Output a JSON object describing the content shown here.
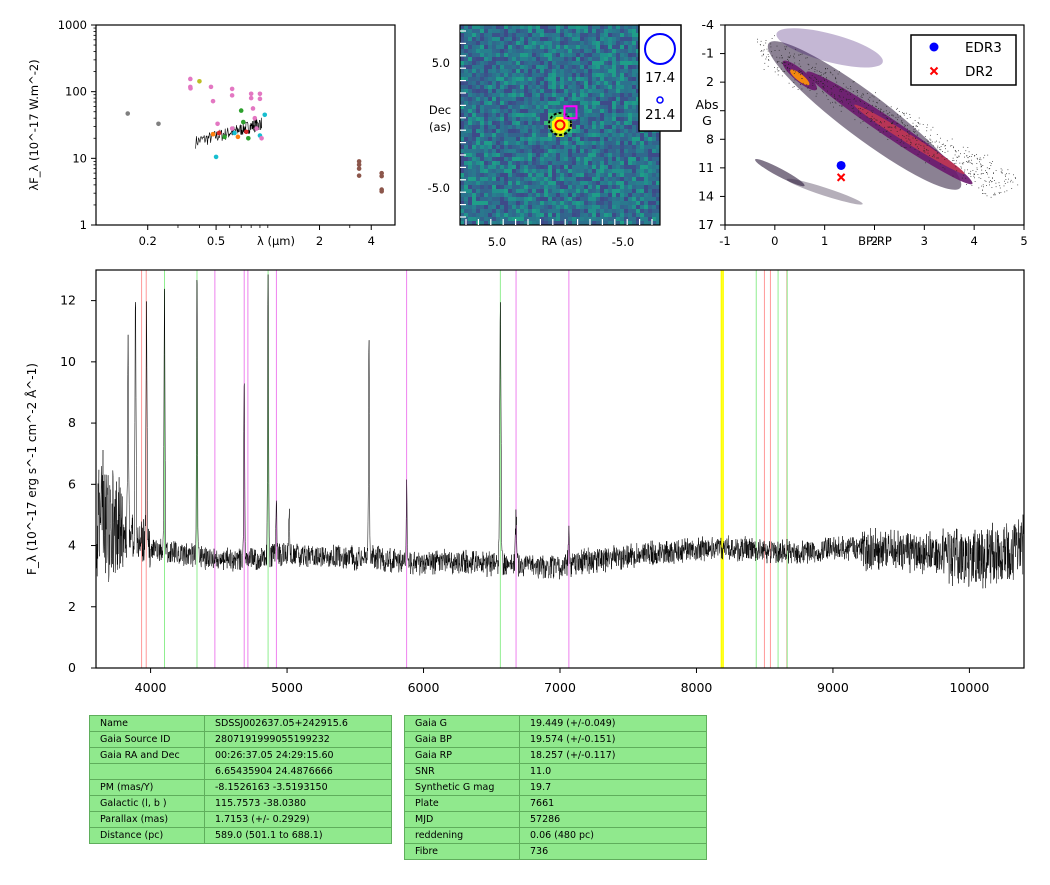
{
  "chart_data": [
    {
      "type": "scatter",
      "panel": "sed",
      "ylabel": "λF_λ (10^-17 W.m^-2)",
      "xlabel": "λ (μm)",
      "xscale": "log",
      "yscale": "log",
      "xlim": [
        0.1,
        5.5
      ],
      "ylim": [
        1,
        1000
      ],
      "xticks": [
        "0.2",
        "0.5",
        "2",
        "4"
      ],
      "yticks": [
        "1",
        "10",
        "100",
        "1000"
      ],
      "points": [
        {
          "x": 0.153,
          "y": 47,
          "color": "#7f7f7f"
        },
        {
          "x": 0.231,
          "y": 33,
          "color": "#7f7f7f"
        },
        {
          "x": 0.354,
          "y": 155,
          "color": "#e377c2"
        },
        {
          "x": 0.354,
          "y": 118,
          "color": "#e377c2"
        },
        {
          "x": 0.355,
          "y": 112,
          "color": "#e377c2"
        },
        {
          "x": 0.4,
          "y": 143,
          "color": "#bcbd22"
        },
        {
          "x": 0.467,
          "y": 118,
          "color": "#e377c2"
        },
        {
          "x": 0.48,
          "y": 72,
          "color": "#e377c2"
        },
        {
          "x": 0.5,
          "y": 10.5,
          "color": "#17becf"
        },
        {
          "x": 0.51,
          "y": 33,
          "color": "#e377c2"
        },
        {
          "x": 0.52,
          "y": 24,
          "color": "#d62728"
        },
        {
          "x": 0.48,
          "y": 23,
          "color": "#ff7f0e"
        },
        {
          "x": 0.56,
          "y": 21,
          "color": "#2ca02c"
        },
        {
          "x": 0.62,
          "y": 110,
          "color": "#e377c2"
        },
        {
          "x": 0.62,
          "y": 88,
          "color": "#e377c2"
        },
        {
          "x": 0.62,
          "y": 28,
          "color": "#e377c2"
        },
        {
          "x": 0.64,
          "y": 24,
          "color": "#17becf"
        },
        {
          "x": 0.67,
          "y": 21,
          "color": "#ff7f0e"
        },
        {
          "x": 0.7,
          "y": 52,
          "color": "#2ca02c"
        },
        {
          "x": 0.72,
          "y": 35,
          "color": "#2ca02c"
        },
        {
          "x": 0.75,
          "y": 25,
          "color": "#d62728"
        },
        {
          "x": 0.77,
          "y": 20,
          "color": "#2ca02c"
        },
        {
          "x": 0.8,
          "y": 93,
          "color": "#e377c2"
        },
        {
          "x": 0.8,
          "y": 80,
          "color": "#e377c2"
        },
        {
          "x": 0.82,
          "y": 56,
          "color": "#e377c2"
        },
        {
          "x": 0.84,
          "y": 40,
          "color": "#e377c2"
        },
        {
          "x": 0.86,
          "y": 28,
          "color": "#e377c2"
        },
        {
          "x": 0.9,
          "y": 22,
          "color": "#17becf"
        },
        {
          "x": 0.9,
          "y": 93,
          "color": "#e377c2"
        },
        {
          "x": 0.9,
          "y": 78,
          "color": "#e377c2"
        },
        {
          "x": 0.92,
          "y": 20,
          "color": "#e377c2"
        },
        {
          "x": 0.96,
          "y": 45,
          "color": "#17becf"
        },
        {
          "x": 3.4,
          "y": 9,
          "color": "#8c564b"
        },
        {
          "x": 3.4,
          "y": 8,
          "color": "#8c564b"
        },
        {
          "x": 3.4,
          "y": 7,
          "color": "#8c564b"
        },
        {
          "x": 3.4,
          "y": 5.5,
          "color": "#8c564b"
        },
        {
          "x": 4.6,
          "y": 6,
          "color": "#8c564b"
        },
        {
          "x": 4.6,
          "y": 5.4,
          "color": "#8c564b"
        },
        {
          "x": 4.6,
          "y": 3.4,
          "color": "#8c564b"
        },
        {
          "x": 4.6,
          "y": 3.2,
          "color": "#8c564b"
        }
      ]
    },
    {
      "type": "heatmap",
      "panel": "image",
      "xlabel": "RA (as)",
      "ylabel": "Dec (as)",
      "xticks": [
        "5.0",
        "-5.0"
      ],
      "yticks": [
        "5.0",
        "-5.0"
      ],
      "xlim": [
        8,
        -8
      ],
      "ylim": [
        -8,
        8
      ],
      "markers": [
        {
          "shape": "circle-dashed",
          "x": 0,
          "y": 0,
          "color": "#000000"
        },
        {
          "shape": "circle",
          "x": 0,
          "y": 0,
          "color": "#ffff00"
        },
        {
          "shape": "circle",
          "x": 0,
          "y": 0,
          "color": "#ff0000"
        },
        {
          "shape": "square",
          "x": 1.0,
          "y": 0.7,
          "color": "#ff00ff"
        }
      ],
      "legend_labels": [
        "17.4",
        "21.4"
      ]
    },
    {
      "type": "scatter",
      "panel": "hr",
      "xlabel": "BP-RP",
      "ylabel": "Abs G",
      "xlim": [
        -1,
        5
      ],
      "ylim": [
        17,
        -4
      ],
      "xticks": [
        "-1",
        "0",
        "1",
        "2",
        "3",
        "4",
        "5"
      ],
      "yticks": [
        "-4",
        "-1",
        "2",
        "5",
        "8",
        "11",
        "14",
        "17"
      ],
      "legend": [
        "EDR3",
        "DR2"
      ],
      "legend_placement": "top-right",
      "points": [
        {
          "label": "EDR3",
          "x": 1.33,
          "y": 10.75,
          "color": "#0000ff",
          "marker": "circle"
        },
        {
          "label": "DR2",
          "x": 1.33,
          "y": 12.0,
          "color": "#ff0000",
          "marker": "x"
        }
      ]
    },
    {
      "type": "line",
      "panel": "spectrum",
      "ylabel": "F_λ (10^-17 erg s^-1 cm^-2 Å^-1)",
      "xlim": [
        3600,
        10400
      ],
      "ylim": [
        0,
        13
      ],
      "xticks": [
        "4000",
        "5000",
        "6000",
        "7000",
        "8000",
        "9000",
        "10000"
      ],
      "yticks": [
        "0",
        "2",
        "4",
        "6",
        "8",
        "10",
        "12"
      ],
      "continuum": [
        [
          3610,
          5.5
        ],
        [
          3700,
          4.6
        ],
        [
          3800,
          4.4
        ],
        [
          3900,
          4.2
        ],
        [
          4000,
          3.9
        ],
        [
          4200,
          3.7
        ],
        [
          4400,
          3.6
        ],
        [
          4600,
          3.5
        ],
        [
          4800,
          3.6
        ],
        [
          5000,
          3.7
        ],
        [
          5200,
          3.7
        ],
        [
          5400,
          3.6
        ],
        [
          5600,
          3.6
        ],
        [
          5800,
          3.5
        ],
        [
          6000,
          3.4
        ],
        [
          6200,
          3.5
        ],
        [
          6400,
          3.4
        ],
        [
          6600,
          3.4
        ],
        [
          6800,
          3.3
        ],
        [
          7000,
          3.3
        ],
        [
          7200,
          3.5
        ],
        [
          7400,
          3.6
        ],
        [
          7600,
          3.7
        ],
        [
          7800,
          3.8
        ],
        [
          8000,
          3.85
        ],
        [
          8200,
          3.95
        ],
        [
          8400,
          3.85
        ],
        [
          8600,
          3.8
        ],
        [
          8800,
          3.8
        ],
        [
          9000,
          3.9
        ],
        [
          9200,
          3.9
        ],
        [
          9400,
          3.85
        ],
        [
          9600,
          3.8
        ],
        [
          9800,
          3.7
        ],
        [
          10000,
          3.6
        ],
        [
          10200,
          3.7
        ],
        [
          10390,
          4.0
        ]
      ],
      "emission_lines": [
        {
          "x": 3835,
          "peak": 10.5
        },
        {
          "x": 3889,
          "peak": 12.5
        },
        {
          "x": 3970,
          "peak": 12.2
        },
        {
          "x": 4102,
          "peak": 12.8
        },
        {
          "x": 4340,
          "peak": 12.7
        },
        {
          "x": 4686,
          "peak": 9.5
        },
        {
          "x": 4861,
          "peak": 12.9
        },
        {
          "x": 4922,
          "peak": 5.3
        },
        {
          "x": 5016,
          "peak": 5.1
        },
        {
          "x": 5600,
          "peak": 10.7
        },
        {
          "x": 5876,
          "peak": 5.9
        },
        {
          "x": 6563,
          "peak": 11.6
        },
        {
          "x": 6678,
          "peak": 5.0
        },
        {
          "x": 7065,
          "peak": 4.4
        }
      ],
      "vlines": [
        {
          "x": 3934,
          "color": "#ff9999"
        },
        {
          "x": 3968,
          "color": "#ff9999"
        },
        {
          "x": 4102,
          "color": "#90ee90"
        },
        {
          "x": 4340,
          "color": "#90ee90"
        },
        {
          "x": 4471,
          "color": "#ee82ee"
        },
        {
          "x": 4686,
          "color": "#ee82ee"
        },
        {
          "x": 4713,
          "color": "#ee82ee"
        },
        {
          "x": 4861,
          "color": "#90ee90"
        },
        {
          "x": 4922,
          "color": "#ee82ee"
        },
        {
          "x": 5876,
          "color": "#ee82ee"
        },
        {
          "x": 6563,
          "color": "#90ee90"
        },
        {
          "x": 6678,
          "color": "#ee82ee"
        },
        {
          "x": 7065,
          "color": "#ee82ee"
        },
        {
          "x": 8183,
          "color": "#ffff00"
        },
        {
          "x": 8195,
          "color": "#ffff00"
        },
        {
          "x": 8438,
          "color": "#90ee90"
        },
        {
          "x": 8498,
          "color": "#ff9999"
        },
        {
          "x": 8542,
          "color": "#ff9999"
        },
        {
          "x": 8598,
          "color": "#90ee90"
        },
        {
          "x": 8662,
          "color": "#ff9999"
        },
        {
          "x": 8665,
          "color": "#90ee90"
        }
      ]
    }
  ],
  "tables": {
    "left": [
      [
        "Name",
        "SDSSJ002637.05+242915.6"
      ],
      [
        "Gaia Source ID",
        "2807191999055199232"
      ],
      [
        "Gaia RA and Dec",
        "00:26:37.05    24:29:15.60"
      ],
      [
        "",
        "6.65435904    24.4876666"
      ],
      [
        "PM (mas/Y)",
        "-8.1526163    -3.5193150"
      ],
      [
        "Galactic (l, b )",
        "115.7573    -38.0380"
      ],
      [
        "Parallax (mas)",
        "1.7153 (+/- 0.2929)"
      ],
      [
        "Distance (pc)",
        "589.0 (501.1 to 688.1)"
      ]
    ],
    "right": [
      [
        "Gaia G",
        "19.449 (+/-0.049)"
      ],
      [
        "Gaia BP",
        "19.574 (+/-0.151)"
      ],
      [
        "Gaia RP",
        "18.257 (+/-0.117)"
      ],
      [
        "SNR",
        "11.0"
      ],
      [
        "Synthetic G mag",
        "19.7"
      ],
      [
        "Plate",
        "7661"
      ],
      [
        "MJD",
        "57286"
      ],
      [
        "reddening",
        "0.06 (480 pc)"
      ],
      [
        "Fibre",
        "736"
      ]
    ]
  }
}
